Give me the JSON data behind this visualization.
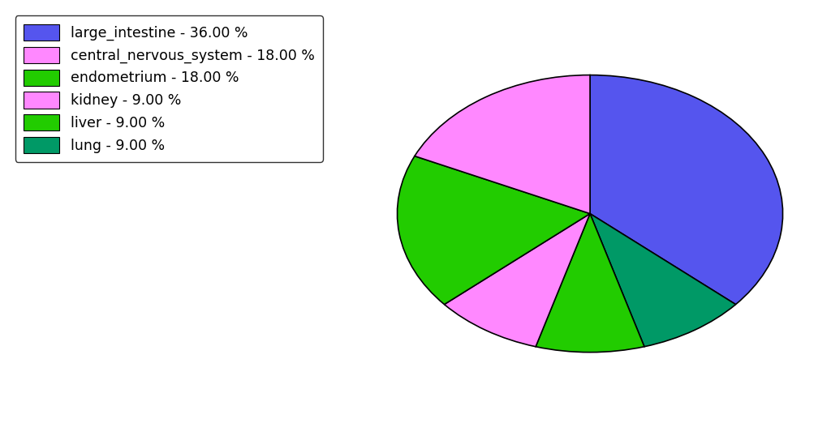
{
  "legend_labels": [
    "large_intestine - 36.00 %",
    "central_nervous_system - 18.00 %",
    "endometrium - 18.00 %",
    "kidney - 9.00 %",
    "liver - 9.00 %",
    "lung - 9.00 %"
  ],
  "legend_colors": [
    "#5555ee",
    "#ff88ff",
    "#22cc00",
    "#ff88ff",
    "#22cc00",
    "#009966"
  ],
  "pie_values": [
    36,
    9,
    9,
    9,
    18,
    18
  ],
  "pie_colors": [
    "#5555ee",
    "#009966",
    "#22cc00",
    "#ff88ff",
    "#22cc00",
    "#ff88ff"
  ],
  "pie_labels": [
    "large_intestine",
    "lung",
    "liver",
    "kidney",
    "endometrium",
    "central_nervous_system"
  ],
  "background_color": "#ffffff",
  "startangle": 90,
  "counterclock": false,
  "figsize": [
    10.24,
    5.38
  ],
  "dpi": 100
}
